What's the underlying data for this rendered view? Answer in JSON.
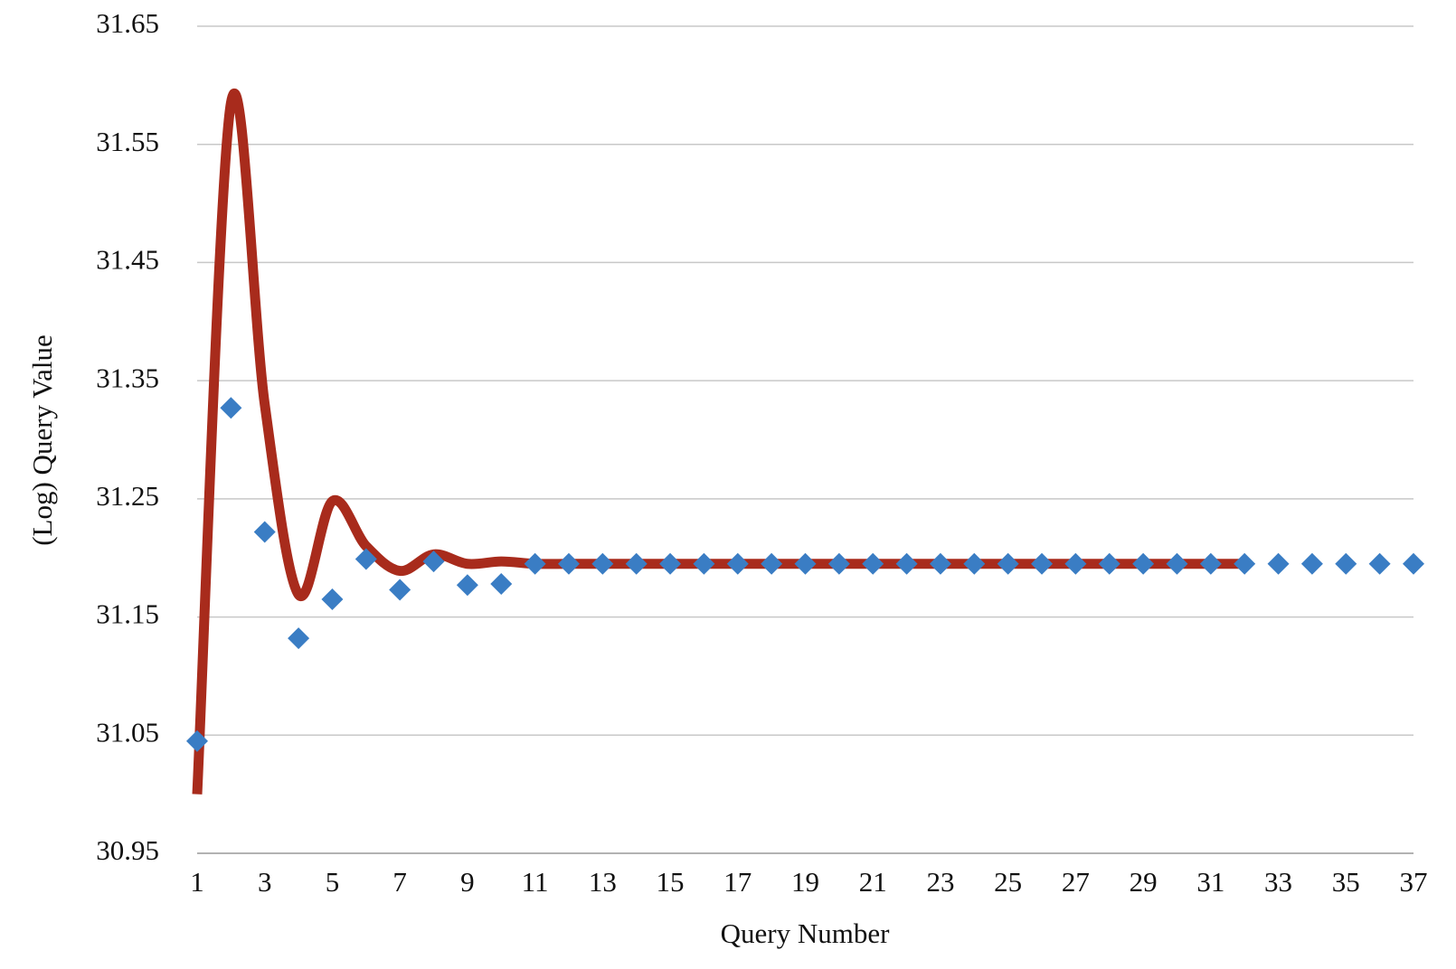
{
  "chart_data": {
    "type": "scatter",
    "x_label": "Query Number",
    "y_label": "(Log) Query Value",
    "x": [
      1,
      2,
      3,
      4,
      5,
      6,
      7,
      8,
      9,
      10,
      11,
      12,
      13,
      14,
      15,
      16,
      17,
      18,
      19,
      20,
      21,
      22,
      23,
      24,
      25,
      26,
      27,
      28,
      29,
      30,
      31,
      32,
      33,
      34,
      35,
      36,
      37
    ],
    "xlim": [
      1,
      37
    ],
    "xticks": [
      1,
      3,
      5,
      7,
      9,
      11,
      13,
      15,
      17,
      19,
      21,
      23,
      25,
      27,
      29,
      31,
      33,
      35,
      37
    ],
    "ylim": [
      30.95,
      31.65
    ],
    "yticks": [
      30.95,
      31.05,
      31.15,
      31.25,
      31.35,
      31.45,
      31.55,
      31.65
    ],
    "grid": true,
    "series": [
      {
        "color": "#3a7dc4",
        "marker": "diamond",
        "values": [
          31.045,
          31.327,
          31.222,
          31.132,
          31.165,
          31.199,
          31.173,
          31.197,
          31.177,
          31.178,
          31.195,
          31.195,
          31.195,
          31.195,
          31.195,
          31.195,
          31.195,
          31.195,
          31.195,
          31.195,
          31.195,
          31.195,
          31.195,
          31.195,
          31.195,
          31.195,
          31.195,
          31.195,
          31.195,
          31.195,
          31.195,
          31.195,
          31.195,
          31.195,
          31.195,
          31.195,
          31.195
        ]
      },
      {
        "color": "#a82b1c",
        "line": "smooth",
        "values": [
          31.0,
          31.585,
          31.33,
          31.169,
          31.248,
          31.21,
          31.189,
          31.203,
          31.195,
          31.197,
          31.195,
          31.195,
          31.195,
          31.195,
          31.195,
          31.195,
          31.195,
          31.195,
          31.195,
          31.195,
          31.195,
          31.195,
          31.195,
          31.195,
          31.195,
          31.195,
          31.195,
          31.195,
          31.195,
          31.195,
          31.195,
          31.195,
          null,
          null,
          null,
          null,
          null
        ]
      }
    ]
  }
}
